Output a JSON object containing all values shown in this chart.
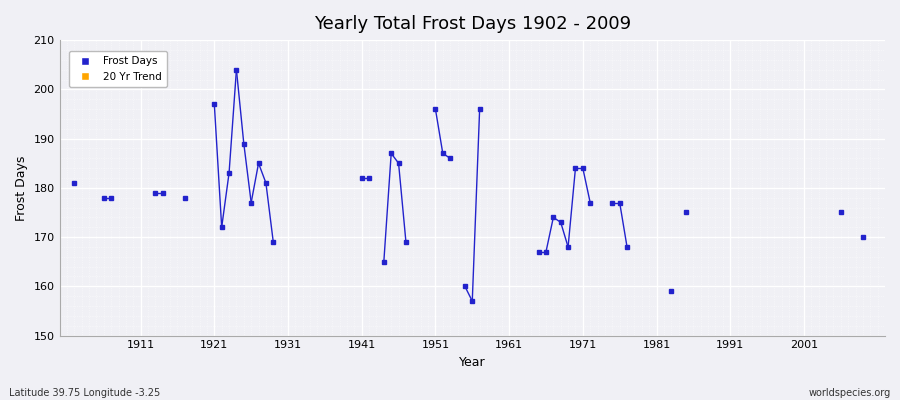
{
  "title": "Yearly Total Frost Days 1902 - 2009",
  "xlabel": "Year",
  "ylabel": "Frost Days",
  "footnote_left": "Latitude 39.75 Longitude -3.25",
  "footnote_right": "worldspecies.org",
  "legend": [
    "Frost Days",
    "20 Yr Trend"
  ],
  "legend_colors": [
    "#2222cc",
    "#ffa500"
  ],
  "xlim": [
    1900,
    2012
  ],
  "ylim": [
    150,
    210
  ],
  "yticks": [
    150,
    160,
    170,
    180,
    190,
    200,
    210
  ],
  "xticks": [
    1911,
    1921,
    1931,
    1941,
    1951,
    1961,
    1971,
    1981,
    1991,
    2001
  ],
  "bg_color": "#f0f0f5",
  "plot_bg_color": "#f0f0f5",
  "line_color": "#2222cc",
  "marker_color": "#2222cc",
  "data_years": [
    1902,
    1906,
    1907,
    1913,
    1914,
    1917,
    1921,
    1922,
    1923,
    1924,
    1925,
    1926,
    1927,
    1928,
    1929,
    1941,
    1942,
    1944,
    1945,
    1946,
    1947,
    1951,
    1952,
    1953,
    1955,
    1956,
    1957,
    1965,
    1966,
    1967,
    1968,
    1969,
    1970,
    1971,
    1972,
    1975,
    1976,
    1977,
    1983,
    1985,
    2006,
    2009
  ],
  "data_values": [
    181,
    178,
    178,
    179,
    179,
    178,
    197,
    172,
    183,
    204,
    189,
    177,
    185,
    181,
    169,
    182,
    182,
    165,
    187,
    185,
    169,
    196,
    187,
    186,
    160,
    157,
    196,
    167,
    167,
    174,
    173,
    168,
    184,
    184,
    177,
    177,
    177,
    168,
    159,
    175,
    175,
    170
  ],
  "connect_threshold": 1
}
